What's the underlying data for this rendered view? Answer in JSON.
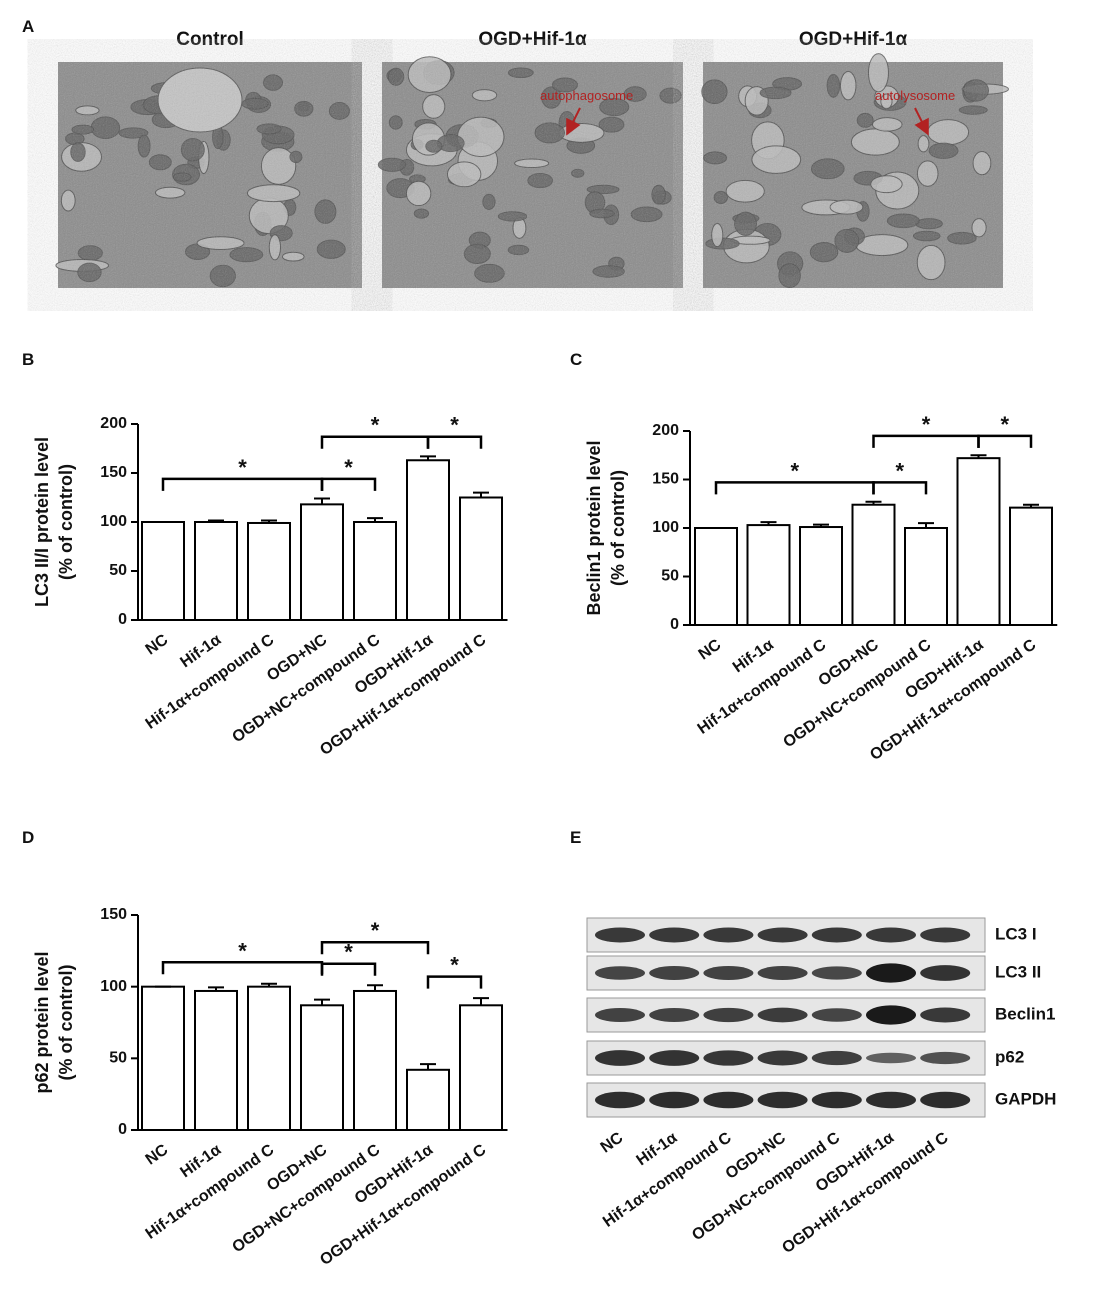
{
  "panel_labels": [
    "A",
    "B",
    "C",
    "D",
    "E"
  ],
  "micrographs": [
    {
      "title": "Control"
    },
    {
      "title": "OGD+Hif-1α",
      "annotation": "autophagosome"
    },
    {
      "title": "OGD+Hif-1α",
      "annotation": "autolysosome"
    }
  ],
  "chart_data": [
    {
      "type": "bar",
      "ylabel": [
        "LC3 II/I protein level",
        "(% of control)"
      ],
      "categories": [
        "NC",
        "Hif-1α",
        "Hif-1α+compound C",
        "OGD+NC",
        "OGD+NC+compound C",
        "OGD+Hif-1α",
        "OGD+Hif-1α+compound C"
      ],
      "values": [
        100,
        100,
        99,
        118,
        100,
        163,
        125
      ],
      "errors": [
        0,
        1.5,
        2.5,
        6,
        4,
        4,
        5
      ],
      "ylim": [
        0,
        200
      ],
      "yticks": [
        0,
        50,
        100,
        150,
        200
      ],
      "color": "#ffffff",
      "comparisons": [
        {
          "groups": [
            "NC",
            "OGD+NC"
          ],
          "label": "*"
        },
        {
          "groups": [
            "OGD+NC",
            "OGD+NC+compound C"
          ],
          "label": "*"
        },
        {
          "groups": [
            "OGD+NC",
            "OGD+Hif-1α"
          ],
          "label": "*"
        },
        {
          "groups": [
            "OGD+Hif-1α",
            "OGD+Hif-1α+compound C"
          ],
          "label": "*"
        }
      ]
    },
    {
      "type": "bar",
      "ylabel": [
        "Beclin1 protein level",
        "(% of control)"
      ],
      "categories": [
        "NC",
        "Hif-1α",
        "Hif-1α+compound C",
        "OGD+NC",
        "OGD+NC+compound C",
        "OGD+Hif-1α",
        "OGD+Hif-1α+compound C"
      ],
      "values": [
        100,
        103,
        101,
        124,
        100,
        172,
        121
      ],
      "errors": [
        0,
        3,
        2.5,
        3,
        5,
        3,
        3
      ],
      "ylim": [
        0,
        200
      ],
      "yticks": [
        0,
        50,
        100,
        150,
        200
      ],
      "color": "#ffffff",
      "comparisons": [
        {
          "groups": [
            "NC",
            "OGD+NC"
          ],
          "label": "*"
        },
        {
          "groups": [
            "OGD+NC",
            "OGD+NC+compound C"
          ],
          "label": "*"
        },
        {
          "groups": [
            "OGD+NC",
            "OGD+Hif-1α"
          ],
          "label": "*"
        },
        {
          "groups": [
            "OGD+Hif-1α",
            "OGD+Hif-1α+compound C"
          ],
          "label": "*"
        }
      ]
    },
    {
      "type": "bar",
      "ylabel": [
        "p62 protein level",
        "(% of control)"
      ],
      "categories": [
        "NC",
        "Hif-1α",
        "Hif-1α+compound C",
        "OGD+NC",
        "OGD+NC+compound C",
        "OGD+Hif-1α",
        "OGD+Hif-1α+compound C"
      ],
      "values": [
        100,
        97,
        100,
        87,
        97,
        42,
        87
      ],
      "errors": [
        0,
        2.5,
        2,
        4,
        4,
        4,
        5
      ],
      "ylim": [
        0,
        150
      ],
      "yticks": [
        0,
        50,
        100,
        150
      ],
      "color": "#ffffff",
      "comparisons": [
        {
          "groups": [
            "NC",
            "OGD+NC"
          ],
          "label": "*"
        },
        {
          "groups": [
            "OGD+NC",
            "OGD+NC+compound C"
          ],
          "label": "*"
        },
        {
          "groups": [
            "OGD+NC",
            "OGD+Hif-1α"
          ],
          "label": "*"
        },
        {
          "groups": [
            "OGD+Hif-1α",
            "OGD+Hif-1α+compound C"
          ],
          "label": "*"
        }
      ]
    }
  ],
  "blot": {
    "rows": [
      "LC3 I",
      "LC3 II",
      "Beclin1",
      "p62",
      "GAPDH"
    ],
    "categories": [
      "NC",
      "Hif-1α",
      "Hif-1α+compound C",
      "OGD+NC",
      "OGD+NC+compound C",
      "OGD+Hif-1α",
      "OGD+Hif-1α+compound C"
    ]
  }
}
